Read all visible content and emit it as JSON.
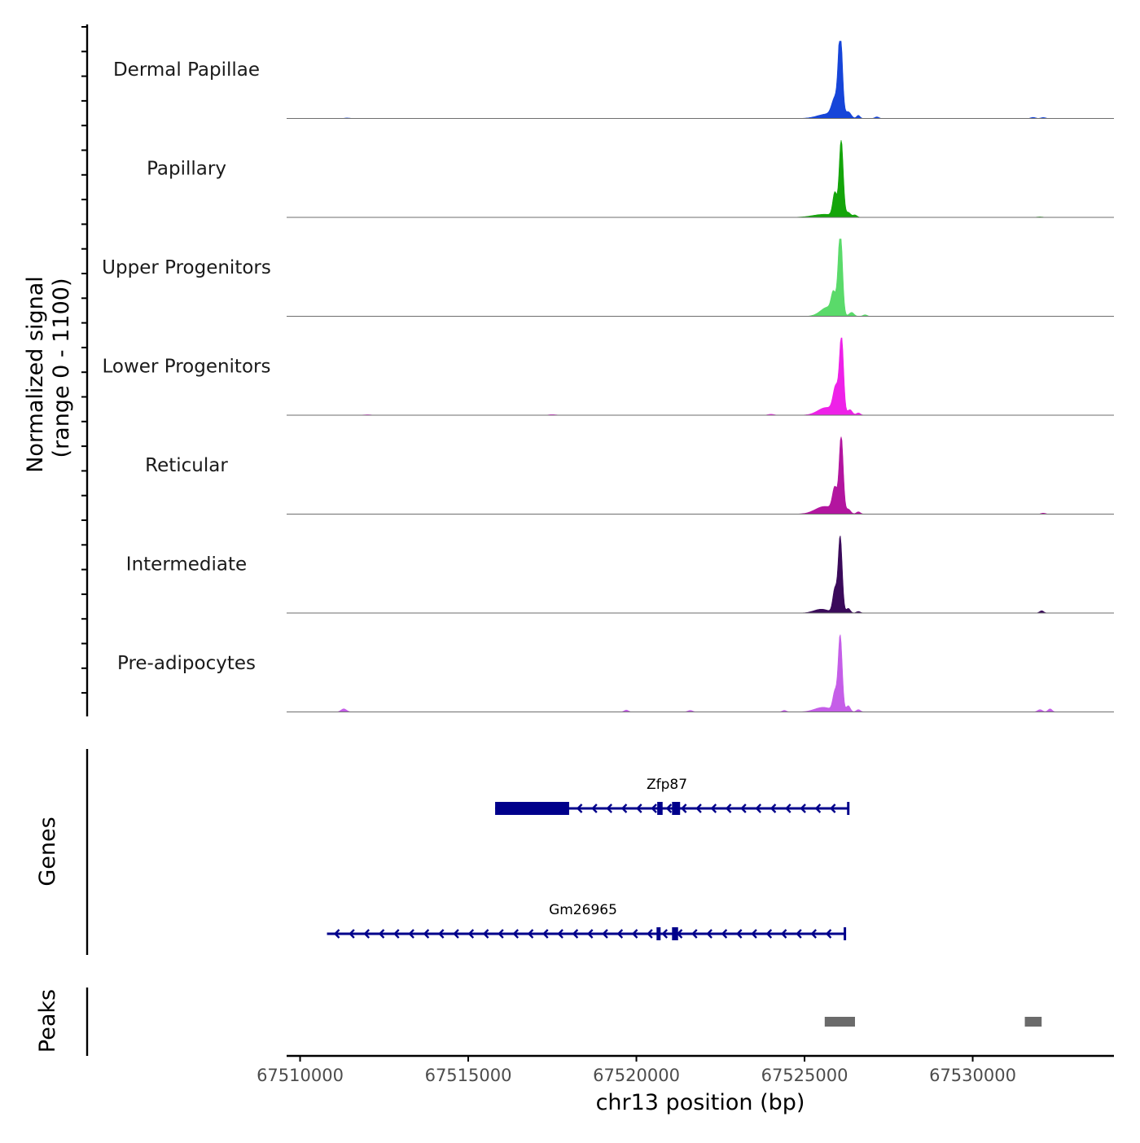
{
  "chart_data": {
    "type": "area",
    "title": "",
    "chromosome": "chr13",
    "xlabel": "chr13 position (bp)",
    "ylabel": "Normalized signal",
    "ylabel_range": "(range 0 - 1100)",
    "xlim": [
      67509600,
      67534200
    ],
    "ylim": [
      0,
      1100
    ],
    "x_ticks": [
      67510000,
      67515000,
      67520000,
      67525000,
      67530000
    ],
    "x_tick_labels": [
      "67510000",
      "67515000",
      "67520000",
      "67525000",
      "67530000"
    ],
    "series": [
      {
        "name": "Dermal Papillae",
        "color": "#1645d9",
        "peaks": [
          {
            "x": 67526100,
            "h": 0.14,
            "w": 60
          },
          {
            "x": 67525700,
            "h": 0.06,
            "w": 300
          },
          {
            "x": 67525900,
            "h": 0.22,
            "w": 90
          },
          {
            "x": 67526060,
            "h": 1,
            "w": 60
          },
          {
            "x": 67526300,
            "h": 0.08,
            "w": 80
          },
          {
            "x": 67526600,
            "h": 0.04,
            "w": 50
          },
          {
            "x": 67527150,
            "h": 0.02,
            "w": 60
          },
          {
            "x": 67511400,
            "h": 0.006,
            "w": 80
          },
          {
            "x": 67531800,
            "h": 0.014,
            "w": 70
          },
          {
            "x": 67532100,
            "h": 0.012,
            "w": 70
          }
        ]
      },
      {
        "name": "Papillary",
        "color": "#14a50a",
        "peaks": [
          {
            "x": 67525600,
            "h": 0.04,
            "w": 350
          },
          {
            "x": 67525900,
            "h": 0.3,
            "w": 60
          },
          {
            "x": 67526090,
            "h": 1,
            "w": 60
          },
          {
            "x": 67526300,
            "h": 0.06,
            "w": 70
          },
          {
            "x": 67526500,
            "h": 0.03,
            "w": 60
          },
          {
            "x": 67532000,
            "h": 0.006,
            "w": 90
          }
        ]
      },
      {
        "name": "Upper Progenitors",
        "color": "#5ada6a",
        "peaks": [
          {
            "x": 67525700,
            "h": 0.12,
            "w": 220
          },
          {
            "x": 67525850,
            "h": 0.22,
            "w": 60
          },
          {
            "x": 67526000,
            "h": 0.18,
            "w": 70
          },
          {
            "x": 67526070,
            "h": 1,
            "w": 60
          },
          {
            "x": 67526400,
            "h": 0.05,
            "w": 70
          },
          {
            "x": 67526800,
            "h": 0.02,
            "w": 60
          }
        ]
      },
      {
        "name": "Lower Progenitors",
        "color": "#ee21e8",
        "peaks": [
          {
            "x": 67525650,
            "h": 0.1,
            "w": 250
          },
          {
            "x": 67525930,
            "h": 0.33,
            "w": 80
          },
          {
            "x": 67526100,
            "h": 1,
            "w": 60
          },
          {
            "x": 67526350,
            "h": 0.07,
            "w": 70
          },
          {
            "x": 67526600,
            "h": 0.03,
            "w": 60
          },
          {
            "x": 67524000,
            "h": 0.012,
            "w": 90
          },
          {
            "x": 67517500,
            "h": 0.008,
            "w": 100
          },
          {
            "x": 67512000,
            "h": 0.006,
            "w": 110
          }
        ]
      },
      {
        "name": "Reticular",
        "color": "#b3159f",
        "peaks": [
          {
            "x": 67525600,
            "h": 0.1,
            "w": 280
          },
          {
            "x": 67525900,
            "h": 0.3,
            "w": 70
          },
          {
            "x": 67526090,
            "h": 1,
            "w": 60
          },
          {
            "x": 67526300,
            "h": 0.06,
            "w": 70
          },
          {
            "x": 67526600,
            "h": 0.03,
            "w": 60
          },
          {
            "x": 67532100,
            "h": 0.012,
            "w": 70
          }
        ]
      },
      {
        "name": "Intermediate",
        "color": "#3a0a5a",
        "peaks": [
          {
            "x": 67525500,
            "h": 0.05,
            "w": 220
          },
          {
            "x": 67525900,
            "h": 0.3,
            "w": 60
          },
          {
            "x": 67526060,
            "h": 1,
            "w": 60
          },
          {
            "x": 67526300,
            "h": 0.06,
            "w": 60
          },
          {
            "x": 67526600,
            "h": 0.02,
            "w": 60
          },
          {
            "x": 67532050,
            "h": 0.03,
            "w": 60
          }
        ]
      },
      {
        "name": "Pre-adipocytes",
        "color": "#c55ee8",
        "peaks": [
          {
            "x": 67525550,
            "h": 0.06,
            "w": 250
          },
          {
            "x": 67525900,
            "h": 0.24,
            "w": 60
          },
          {
            "x": 67526060,
            "h": 1,
            "w": 60
          },
          {
            "x": 67526300,
            "h": 0.08,
            "w": 60
          },
          {
            "x": 67526600,
            "h": 0.03,
            "w": 60
          },
          {
            "x": 67511300,
            "h": 0.04,
            "w": 80
          },
          {
            "x": 67519700,
            "h": 0.025,
            "w": 60
          },
          {
            "x": 67521600,
            "h": 0.02,
            "w": 70
          },
          {
            "x": 67524400,
            "h": 0.02,
            "w": 60
          },
          {
            "x": 67532000,
            "h": 0.03,
            "w": 70
          },
          {
            "x": 67532300,
            "h": 0.04,
            "w": 60
          }
        ]
      }
    ],
    "genes": [
      {
        "name": "Gm26965",
        "start": 67510800,
        "end": 67526200,
        "strand": "-",
        "color": "#00008b",
        "exons": [
          [
            67520600,
            67520720
          ],
          [
            67521060,
            67521240
          ]
        ]
      },
      {
        "name": "Zfp87",
        "start": 67515800,
        "end": 67526300,
        "strand": "-",
        "color": "#00008b",
        "exons": [
          [
            67515800,
            67518000
          ],
          [
            67520620,
            67520780
          ],
          [
            67521060,
            67521300
          ]
        ]
      }
    ],
    "peaks_track": {
      "name": "Peaks",
      "color": "#6b6b6b",
      "regions": [
        [
          67525600,
          67526500
        ],
        [
          67531550,
          67532050
        ]
      ]
    },
    "panel_labels": {
      "genes": "Genes",
      "peaks": "Peaks"
    }
  }
}
